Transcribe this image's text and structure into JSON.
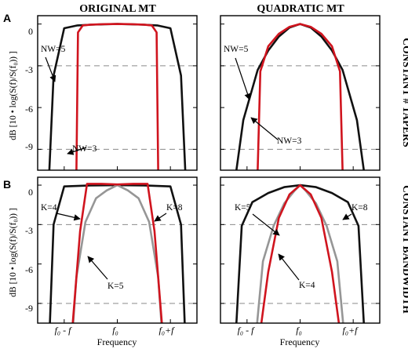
{
  "figure": {
    "column_titles": [
      "ORIGINAL MT",
      "QUADRATIC MT"
    ],
    "row_titles": [
      "CONSTANT # TAPERS",
      "CONSTANT BANDWIDTH"
    ],
    "panel_letters": [
      "A",
      "B"
    ],
    "ylabel": "dB  [10 • log(S(f)/S(f₀)) ]",
    "xlabel": "Frequency",
    "x_tick_labels": [
      "f₀ - f",
      "f₀",
      "f₀+f"
    ],
    "y_tick_labels": [
      "0",
      "-3",
      "-6",
      "-9"
    ]
  },
  "colors": {
    "black": "#111111",
    "red": "#d0141e",
    "gray": "#969696",
    "dash": "#8a8a8a"
  },
  "chart_data": [
    {
      "type": "line",
      "title": "ORIGINAL MT",
      "row": "CONSTANT # TAPERS",
      "xlabel": "",
      "ylabel": "dB  [10 • log(S(f)/S(f₀)) ]",
      "xlim": [
        -1.5,
        1.5
      ],
      "ylim": [
        -10.5,
        0.6
      ],
      "reference_lines_y": [
        -3,
        -9
      ],
      "series": [
        {
          "name": "NW=5",
          "color": "black",
          "x": [
            -1.28,
            -1.2,
            -1.0,
            -0.75,
            -0.5,
            -0.25,
            0,
            0.25,
            0.5,
            0.75,
            1.0,
            1.2,
            1.28
          ],
          "y": [
            -10.5,
            -3.7,
            -0.3,
            -0.1,
            -0.05,
            -0.02,
            0,
            -0.02,
            -0.05,
            -0.1,
            -0.3,
            -3.7,
            -10.5
          ]
        },
        {
          "name": "NW=3",
          "color": "red",
          "x": [
            -0.77,
            -0.74,
            -0.65,
            -0.5,
            -0.25,
            0,
            0.25,
            0.5,
            0.65,
            0.74,
            0.77
          ],
          "y": [
            -10.5,
            -0.6,
            -0.1,
            -0.04,
            -0.01,
            0,
            -0.01,
            -0.04,
            -0.1,
            -0.6,
            -10.5
          ]
        }
      ],
      "annotations": [
        "NW=5",
        "NW=3"
      ]
    },
    {
      "type": "line",
      "title": "QUADRATIC MT",
      "row": "CONSTANT # TAPERS",
      "xlabel": "",
      "ylabel": "",
      "xlim": [
        -1.5,
        1.5
      ],
      "ylim": [
        -10.5,
        0.6
      ],
      "reference_lines_y": [
        -3,
        -9
      ],
      "series": [
        {
          "name": "NW=5",
          "color": "black",
          "x": [
            -1.2,
            -1.07,
            -0.8,
            -0.6,
            -0.4,
            -0.2,
            0,
            0.2,
            0.4,
            0.6,
            0.8,
            1.07,
            1.2
          ],
          "y": [
            -10.5,
            -6.9,
            -3.3,
            -1.9,
            -0.9,
            -0.25,
            0,
            -0.25,
            -0.9,
            -1.9,
            -3.3,
            -6.9,
            -10.5
          ]
        },
        {
          "name": "NW=3",
          "color": "red",
          "x": [
            -0.8,
            -0.75,
            -0.6,
            -0.4,
            -0.2,
            0,
            0.2,
            0.4,
            0.6,
            0.75,
            0.8
          ],
          "y": [
            -10.5,
            -3.4,
            -1.6,
            -0.7,
            -0.2,
            0,
            -0.2,
            -0.7,
            -1.6,
            -3.4,
            -10.5
          ]
        }
      ],
      "annotations": [
        "NW=5",
        "NW=3"
      ]
    },
    {
      "type": "line",
      "title": "ORIGINAL MT",
      "row": "CONSTANT BANDWIDTH",
      "xlabel": "Frequency",
      "ylabel": "dB  [10 • log(S(f)/S(f₀)) ]",
      "xlim": [
        -1.5,
        1.5
      ],
      "ylim": [
        -10.5,
        0.6
      ],
      "reference_lines_y": [
        -3,
        -9
      ],
      "series": [
        {
          "name": "K=8",
          "color": "black",
          "x": [
            -1.27,
            -1.2,
            -1.0,
            -0.5,
            0,
            0.5,
            1.0,
            1.2,
            1.27
          ],
          "y": [
            -10.5,
            -3.0,
            -0.1,
            -0.02,
            0,
            -0.02,
            -0.1,
            -3.0,
            -10.5
          ]
        },
        {
          "name": "K=5",
          "color": "gray",
          "x": [
            -0.83,
            -0.77,
            -0.6,
            -0.4,
            -0.2,
            0,
            0.2,
            0.4,
            0.6,
            0.77,
            0.83
          ],
          "y": [
            -10.5,
            -7.0,
            -2.8,
            -1.0,
            -0.4,
            0,
            -0.4,
            -1.0,
            -2.8,
            -7.0,
            -10.5
          ]
        },
        {
          "name": "K=4",
          "color": "red",
          "x": [
            -0.84,
            -0.7,
            -0.57,
            -0.3,
            0,
            0.3,
            0.57,
            0.7,
            0.84
          ],
          "y": [
            -10.5,
            -3.5,
            0.1,
            0.1,
            0.05,
            0.1,
            0.1,
            -3.5,
            -10.5
          ]
        }
      ],
      "annotations": [
        "K=4",
        "K=8",
        "K=5"
      ]
    },
    {
      "type": "line",
      "title": "QUADRATIC MT",
      "row": "CONSTANT BANDWIDTH",
      "xlabel": "Frequency",
      "ylabel": "",
      "xlim": [
        -1.5,
        1.5
      ],
      "ylim": [
        -10.5,
        0.6
      ],
      "reference_lines_y": [
        -3,
        -9
      ],
      "series": [
        {
          "name": "K=8",
          "color": "black",
          "x": [
            -1.2,
            -1.1,
            -0.9,
            -0.6,
            -0.3,
            0,
            0.3,
            0.6,
            0.9,
            1.1,
            1.2
          ],
          "y": [
            -10.5,
            -3.1,
            -1.3,
            -0.6,
            -0.15,
            0,
            -0.15,
            -0.6,
            -1.3,
            -3.1,
            -10.5
          ]
        },
        {
          "name": "K=5",
          "color": "gray",
          "x": [
            -0.81,
            -0.7,
            -0.5,
            -0.3,
            -0.1,
            0,
            0.1,
            0.3,
            0.5,
            0.7,
            0.81
          ],
          "y": [
            -10.5,
            -5.8,
            -3.1,
            -1.4,
            -0.4,
            0,
            -0.4,
            -1.4,
            -3.1,
            -5.8,
            -10.5
          ]
        },
        {
          "name": "K=4",
          "color": "red",
          "x": [
            -0.73,
            -0.6,
            -0.4,
            -0.2,
            0,
            0.2,
            0.4,
            0.6,
            0.73
          ],
          "y": [
            -10.5,
            -6.6,
            -2.5,
            -0.7,
            0,
            -0.7,
            -2.5,
            -6.6,
            -10.5
          ]
        }
      ],
      "annotations": [
        "K=5",
        "K=8",
        "K=4"
      ]
    }
  ]
}
